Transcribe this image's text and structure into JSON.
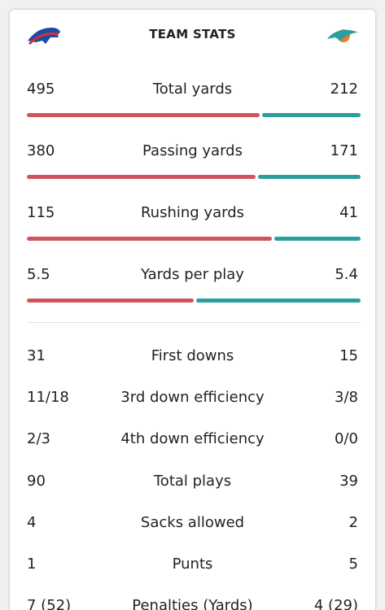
{
  "header": {
    "title": "TEAM STATS"
  },
  "colors": {
    "home": "#d1545c",
    "away": "#2b9ea0"
  },
  "bar_stats": [
    {
      "label": "Total yards",
      "home": 495,
      "away": 212
    },
    {
      "label": "Passing yards",
      "home": 380,
      "away": 171
    },
    {
      "label": "Rushing yards",
      "home": 115,
      "away": 41
    },
    {
      "label": "Yards per play",
      "home": 5.5,
      "away": 5.4
    }
  ],
  "list_stats": [
    {
      "label": "First downs",
      "home": 31,
      "away": 15
    },
    {
      "label": "3rd down efficiency",
      "home": "11/18",
      "away": "3/8"
    },
    {
      "label": "4th down efficiency",
      "home": "2/3",
      "away": "0/0"
    },
    {
      "label": "Total plays",
      "home": 90,
      "away": 39
    },
    {
      "label": "Sacks allowed",
      "home": 4,
      "away": 2
    },
    {
      "label": "Punts",
      "home": 1,
      "away": 5
    },
    {
      "label": "Penalties (Yards)",
      "home": "7 (52)",
      "away": "4 (29)"
    }
  ]
}
